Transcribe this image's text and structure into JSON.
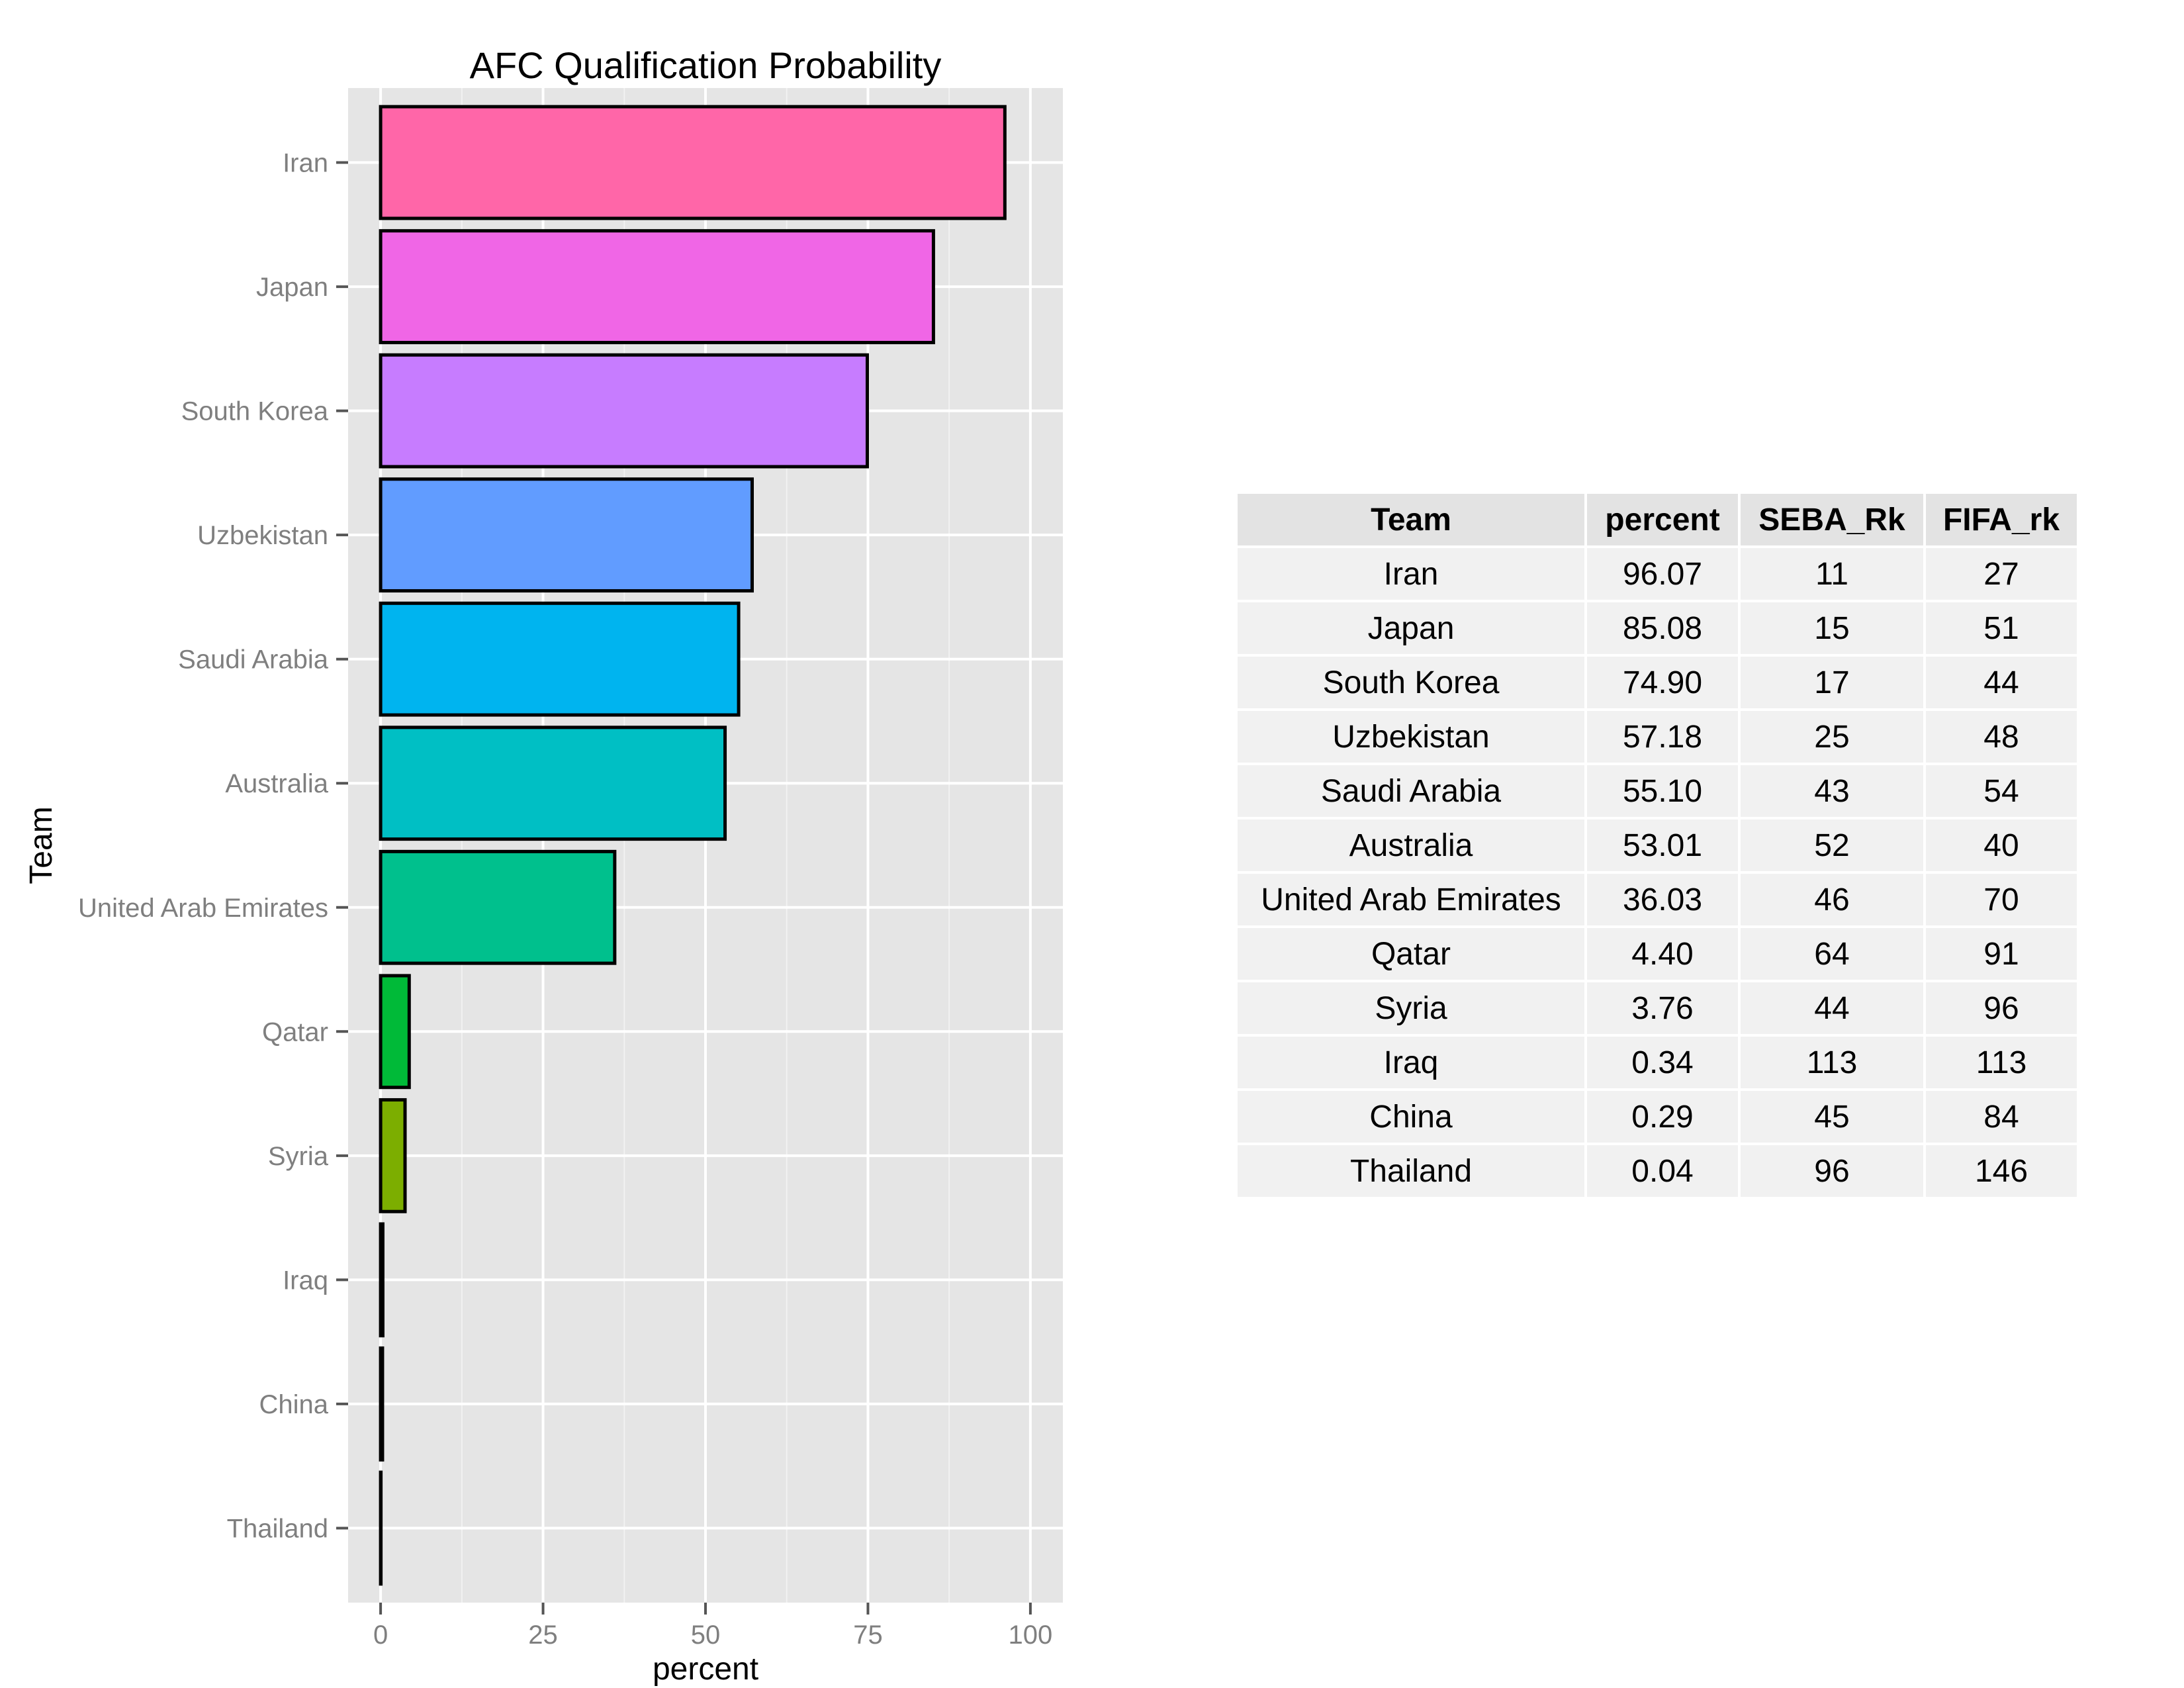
{
  "chart_data": {
    "type": "bar",
    "orientation": "horizontal",
    "title": "AFC Qualification Probability",
    "xlabel": "percent",
    "ylabel": "Team",
    "categories": [
      "Iran",
      "Japan",
      "South Korea",
      "Uzbekistan",
      "Saudi Arabia",
      "Australia",
      "United Arab Emirates",
      "Qatar",
      "Syria",
      "Iraq",
      "China",
      "Thailand"
    ],
    "values": [
      96.07,
      85.08,
      74.9,
      57.18,
      55.1,
      53.01,
      36.03,
      4.4,
      3.76,
      0.34,
      0.29,
      0.04
    ],
    "colors": [
      "#ff66a8",
      "#f066e6",
      "#c77cff",
      "#619cff",
      "#00b4ef",
      "#00bfc4",
      "#00c08d",
      "#00ba38",
      "#7cae00",
      "#aea200",
      "#de8c00",
      "#f8766d"
    ],
    "xticks": [
      "0",
      "25",
      "50",
      "75",
      "100"
    ],
    "xlim": [
      -5,
      105
    ],
    "grid": true,
    "legend": "none"
  },
  "table": {
    "headers": [
      "Team",
      "percent",
      "SEBA_Rk",
      "FIFA_rk"
    ],
    "rows": [
      [
        "Iran",
        "96.07",
        "11",
        "27"
      ],
      [
        "Japan",
        "85.08",
        "15",
        "51"
      ],
      [
        "South Korea",
        "74.90",
        "17",
        "44"
      ],
      [
        "Uzbekistan",
        "57.18",
        "25",
        "48"
      ],
      [
        "Saudi Arabia",
        "55.10",
        "43",
        "54"
      ],
      [
        "Australia",
        "53.01",
        "52",
        "40"
      ],
      [
        "United Arab Emirates",
        "36.03",
        "46",
        "70"
      ],
      [
        "Qatar",
        "4.40",
        "64",
        "91"
      ],
      [
        "Syria",
        "3.76",
        "44",
        "96"
      ],
      [
        "Iraq",
        "0.34",
        "113",
        "113"
      ],
      [
        "China",
        "0.29",
        "45",
        "84"
      ],
      [
        "Thailand",
        "0.04",
        "96",
        "146"
      ]
    ]
  }
}
